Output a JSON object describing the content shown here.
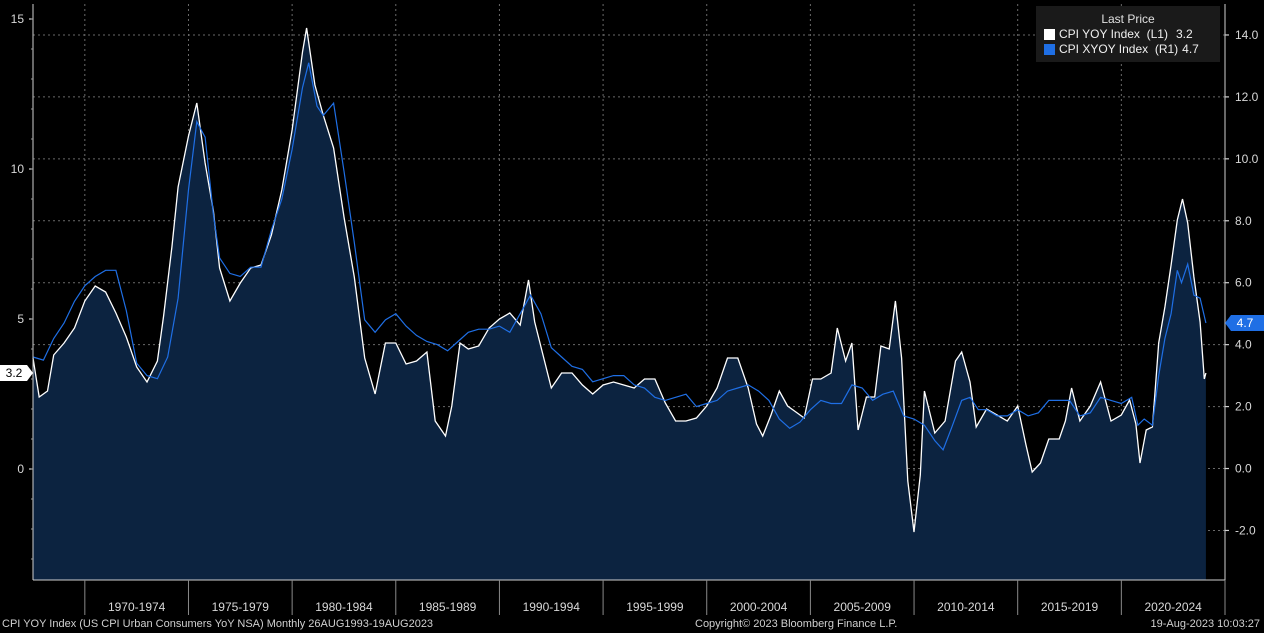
{
  "chart_data": {
    "type": "area",
    "legend": {
      "header": "Last Price",
      "placement": "top-right",
      "entries": [
        {
          "name": "CPI YOY Index  (L1)",
          "last": "3.2",
          "color": "#ffffff"
        },
        {
          "name": "CPI XYOY Index  (R1)",
          "last": "4.7",
          "color": "#1f6fe5"
        }
      ]
    },
    "left_axis": {
      "ticks": [
        "15",
        "10",
        "5",
        "0"
      ],
      "tick_values": [
        15,
        10,
        5,
        0
      ],
      "range": [
        -3.7,
        15.5
      ]
    },
    "right_axis": {
      "ticks": [
        "14.0",
        "12.0",
        "10.0",
        "8.0",
        "6.0",
        "4.0",
        "2.0",
        "0.0",
        "-2.0"
      ],
      "tick_values": [
        14,
        12,
        10,
        8,
        6,
        4,
        2,
        0,
        -2
      ],
      "range": [
        -3.6,
        15.0
      ]
    },
    "x_axis": {
      "labels": [
        "1970-1974",
        "1975-1979",
        "1980-1984",
        "1985-1989",
        "1990-1994",
        "1995-1999",
        "2000-2004",
        "2005-2009",
        "2010-2014",
        "2015-2019",
        "2020-2024"
      ],
      "range": [
        1967.0,
        2024.5
      ]
    },
    "last_labels": {
      "left": "3.2",
      "right": "4.7"
    },
    "grid": true,
    "series": [
      {
        "name": "CPI YOY Index  (L1)",
        "axis": "left",
        "color": "#ffffff",
        "fill": "#0c2340",
        "points": [
          [
            1967.0,
            3.7
          ],
          [
            1967.3,
            2.4
          ],
          [
            1967.7,
            2.6
          ],
          [
            1968.0,
            3.8
          ],
          [
            1968.5,
            4.2
          ],
          [
            1969.0,
            4.7
          ],
          [
            1969.5,
            5.6
          ],
          [
            1970.0,
            6.1
          ],
          [
            1970.5,
            5.9
          ],
          [
            1971.0,
            5.2
          ],
          [
            1971.5,
            4.4
          ],
          [
            1972.0,
            3.4
          ],
          [
            1972.5,
            2.9
          ],
          [
            1973.0,
            3.6
          ],
          [
            1973.3,
            5.1
          ],
          [
            1973.7,
            7.4
          ],
          [
            1974.0,
            9.4
          ],
          [
            1974.5,
            11.1
          ],
          [
            1974.9,
            12.2
          ],
          [
            1975.3,
            10.2
          ],
          [
            1975.7,
            8.6
          ],
          [
            1976.0,
            6.7
          ],
          [
            1976.5,
            5.6
          ],
          [
            1977.0,
            6.2
          ],
          [
            1977.5,
            6.7
          ],
          [
            1978.0,
            6.8
          ],
          [
            1978.5,
            7.8
          ],
          [
            1979.0,
            9.3
          ],
          [
            1979.5,
            11.3
          ],
          [
            1980.0,
            13.9
          ],
          [
            1980.2,
            14.7
          ],
          [
            1980.6,
            12.8
          ],
          [
            1981.0,
            11.8
          ],
          [
            1981.5,
            10.7
          ],
          [
            1982.0,
            8.4
          ],
          [
            1982.5,
            6.4
          ],
          [
            1983.0,
            3.7
          ],
          [
            1983.5,
            2.5
          ],
          [
            1984.0,
            4.2
          ],
          [
            1984.5,
            4.2
          ],
          [
            1985.0,
            3.5
          ],
          [
            1985.5,
            3.6
          ],
          [
            1986.0,
            3.9
          ],
          [
            1986.4,
            1.6
          ],
          [
            1986.9,
            1.1
          ],
          [
            1987.2,
            2.1
          ],
          [
            1987.6,
            4.2
          ],
          [
            1988.0,
            4.0
          ],
          [
            1988.5,
            4.1
          ],
          [
            1989.0,
            4.7
          ],
          [
            1989.5,
            5.0
          ],
          [
            1990.0,
            5.2
          ],
          [
            1990.5,
            4.8
          ],
          [
            1990.9,
            6.3
          ],
          [
            1991.2,
            4.9
          ],
          [
            1991.6,
            3.8
          ],
          [
            1992.0,
            2.7
          ],
          [
            1992.5,
            3.2
          ],
          [
            1993.0,
            3.2
          ],
          [
            1993.5,
            2.8
          ],
          [
            1994.0,
            2.5
          ],
          [
            1994.5,
            2.8
          ],
          [
            1995.0,
            2.9
          ],
          [
            1995.5,
            2.8
          ],
          [
            1996.0,
            2.7
          ],
          [
            1996.5,
            3.0
          ],
          [
            1997.0,
            3.0
          ],
          [
            1997.5,
            2.2
          ],
          [
            1998.0,
            1.6
          ],
          [
            1998.5,
            1.6
          ],
          [
            1999.0,
            1.7
          ],
          [
            1999.5,
            2.1
          ],
          [
            2000.0,
            2.7
          ],
          [
            2000.5,
            3.7
          ],
          [
            2001.0,
            3.7
          ],
          [
            2001.5,
            2.7
          ],
          [
            2001.9,
            1.5
          ],
          [
            2002.2,
            1.1
          ],
          [
            2002.6,
            1.8
          ],
          [
            2003.0,
            2.6
          ],
          [
            2003.4,
            2.1
          ],
          [
            2003.8,
            1.9
          ],
          [
            2004.2,
            1.7
          ],
          [
            2004.6,
            3.0
          ],
          [
            2005.0,
            3.0
          ],
          [
            2005.5,
            3.2
          ],
          [
            2005.8,
            4.7
          ],
          [
            2006.2,
            3.6
          ],
          [
            2006.5,
            4.2
          ],
          [
            2006.8,
            1.3
          ],
          [
            2007.2,
            2.4
          ],
          [
            2007.6,
            2.4
          ],
          [
            2007.9,
            4.1
          ],
          [
            2008.3,
            4.0
          ],
          [
            2008.6,
            5.6
          ],
          [
            2008.9,
            3.7
          ],
          [
            2009.2,
            -0.4
          ],
          [
            2009.5,
            -2.1
          ],
          [
            2009.8,
            -0.2
          ],
          [
            2010.0,
            2.6
          ],
          [
            2010.5,
            1.2
          ],
          [
            2011.0,
            1.6
          ],
          [
            2011.5,
            3.6
          ],
          [
            2011.8,
            3.9
          ],
          [
            2012.2,
            2.9
          ],
          [
            2012.5,
            1.4
          ],
          [
            2013.0,
            2.0
          ],
          [
            2013.5,
            1.8
          ],
          [
            2014.0,
            1.6
          ],
          [
            2014.5,
            2.1
          ],
          [
            2014.9,
            0.8
          ],
          [
            2015.2,
            -0.1
          ],
          [
            2015.6,
            0.2
          ],
          [
            2016.0,
            1.0
          ],
          [
            2016.5,
            1.0
          ],
          [
            2016.8,
            1.6
          ],
          [
            2017.1,
            2.7
          ],
          [
            2017.5,
            1.6
          ],
          [
            2018.0,
            2.1
          ],
          [
            2018.5,
            2.9
          ],
          [
            2019.0,
            1.6
          ],
          [
            2019.5,
            1.8
          ],
          [
            2019.9,
            2.3
          ],
          [
            2020.2,
            1.5
          ],
          [
            2020.4,
            0.2
          ],
          [
            2020.7,
            1.3
          ],
          [
            2021.0,
            1.4
          ],
          [
            2021.3,
            4.2
          ],
          [
            2021.6,
            5.4
          ],
          [
            2021.9,
            6.8
          ],
          [
            2022.2,
            8.3
          ],
          [
            2022.45,
            9.0
          ],
          [
            2022.7,
            8.2
          ],
          [
            2023.0,
            6.4
          ],
          [
            2023.3,
            4.9
          ],
          [
            2023.5,
            3.0
          ],
          [
            2023.58,
            3.2
          ]
        ]
      },
      {
        "name": "CPI XYOY Index  (R1)",
        "axis": "right",
        "color": "#1f6fe5",
        "points": [
          [
            1967.0,
            3.6
          ],
          [
            1967.5,
            3.5
          ],
          [
            1968.0,
            4.2
          ],
          [
            1968.5,
            4.7
          ],
          [
            1969.0,
            5.4
          ],
          [
            1969.5,
            5.9
          ],
          [
            1970.0,
            6.2
          ],
          [
            1970.5,
            6.4
          ],
          [
            1971.0,
            6.4
          ],
          [
            1971.5,
            5.1
          ],
          [
            1972.0,
            3.4
          ],
          [
            1972.5,
            3.0
          ],
          [
            1973.0,
            2.9
          ],
          [
            1973.5,
            3.6
          ],
          [
            1974.0,
            5.5
          ],
          [
            1974.5,
            9.0
          ],
          [
            1974.9,
            11.2
          ],
          [
            1975.3,
            10.7
          ],
          [
            1975.7,
            8.2
          ],
          [
            1976.0,
            6.8
          ],
          [
            1976.5,
            6.3
          ],
          [
            1977.0,
            6.2
          ],
          [
            1977.5,
            6.5
          ],
          [
            1978.0,
            6.5
          ],
          [
            1978.5,
            7.7
          ],
          [
            1979.0,
            8.7
          ],
          [
            1979.5,
            10.3
          ],
          [
            1980.0,
            12.3
          ],
          [
            1980.3,
            13.1
          ],
          [
            1980.7,
            11.7
          ],
          [
            1981.0,
            11.4
          ],
          [
            1981.5,
            11.8
          ],
          [
            1982.0,
            9.6
          ],
          [
            1982.5,
            7.3
          ],
          [
            1983.0,
            4.8
          ],
          [
            1983.5,
            4.4
          ],
          [
            1984.0,
            4.8
          ],
          [
            1984.5,
            5.0
          ],
          [
            1985.0,
            4.6
          ],
          [
            1985.5,
            4.3
          ],
          [
            1986.0,
            4.1
          ],
          [
            1986.5,
            4.0
          ],
          [
            1987.0,
            3.8
          ],
          [
            1987.5,
            4.1
          ],
          [
            1988.0,
            4.4
          ],
          [
            1988.5,
            4.5
          ],
          [
            1989.0,
            4.5
          ],
          [
            1989.5,
            4.6
          ],
          [
            1990.0,
            4.4
          ],
          [
            1990.5,
            5.0
          ],
          [
            1991.0,
            5.6
          ],
          [
            1991.5,
            5.0
          ],
          [
            1992.0,
            3.9
          ],
          [
            1992.5,
            3.6
          ],
          [
            1993.0,
            3.3
          ],
          [
            1993.5,
            3.2
          ],
          [
            1994.0,
            2.8
          ],
          [
            1994.5,
            2.9
          ],
          [
            1995.0,
            3.0
          ],
          [
            1995.5,
            3.0
          ],
          [
            1996.0,
            2.7
          ],
          [
            1996.5,
            2.6
          ],
          [
            1997.0,
            2.3
          ],
          [
            1997.5,
            2.2
          ],
          [
            1998.0,
            2.3
          ],
          [
            1998.5,
            2.4
          ],
          [
            1999.0,
            2.0
          ],
          [
            1999.5,
            2.1
          ],
          [
            2000.0,
            2.2
          ],
          [
            2000.5,
            2.5
          ],
          [
            2001.0,
            2.6
          ],
          [
            2001.5,
            2.7
          ],
          [
            2002.0,
            2.5
          ],
          [
            2002.5,
            2.2
          ],
          [
            2003.0,
            1.6
          ],
          [
            2003.5,
            1.3
          ],
          [
            2004.0,
            1.5
          ],
          [
            2004.5,
            1.9
          ],
          [
            2005.0,
            2.2
          ],
          [
            2005.5,
            2.1
          ],
          [
            2006.0,
            2.1
          ],
          [
            2006.5,
            2.7
          ],
          [
            2007.0,
            2.6
          ],
          [
            2007.5,
            2.2
          ],
          [
            2008.0,
            2.4
          ],
          [
            2008.5,
            2.5
          ],
          [
            2009.0,
            1.7
          ],
          [
            2009.5,
            1.6
          ],
          [
            2010.0,
            1.4
          ],
          [
            2010.5,
            0.9
          ],
          [
            2010.9,
            0.6
          ],
          [
            2011.3,
            1.3
          ],
          [
            2011.8,
            2.2
          ],
          [
            2012.2,
            2.3
          ],
          [
            2012.6,
            1.9
          ],
          [
            2013.0,
            1.9
          ],
          [
            2013.5,
            1.7
          ],
          [
            2014.0,
            1.7
          ],
          [
            2014.5,
            1.9
          ],
          [
            2015.0,
            1.7
          ],
          [
            2015.5,
            1.8
          ],
          [
            2016.0,
            2.2
          ],
          [
            2016.5,
            2.2
          ],
          [
            2017.0,
            2.2
          ],
          [
            2017.5,
            1.7
          ],
          [
            2018.0,
            1.8
          ],
          [
            2018.5,
            2.3
          ],
          [
            2019.0,
            2.2
          ],
          [
            2019.5,
            2.1
          ],
          [
            2020.0,
            2.3
          ],
          [
            2020.3,
            1.4
          ],
          [
            2020.6,
            1.6
          ],
          [
            2021.0,
            1.4
          ],
          [
            2021.3,
            3.0
          ],
          [
            2021.6,
            4.2
          ],
          [
            2021.9,
            5.0
          ],
          [
            2022.2,
            6.4
          ],
          [
            2022.4,
            6.0
          ],
          [
            2022.7,
            6.6
          ],
          [
            2023.0,
            5.6
          ],
          [
            2023.3,
            5.5
          ],
          [
            2023.58,
            4.7
          ]
        ]
      }
    ]
  },
  "footer": {
    "left": "CPI YOY Index (US CPI Urban Consumers YoY NSA)  Monthly 26AUG1993-19AUG2023",
    "center": "Copyright© 2023 Bloomberg Finance L.P.",
    "right": "19-Aug-2023 10:03:27"
  }
}
